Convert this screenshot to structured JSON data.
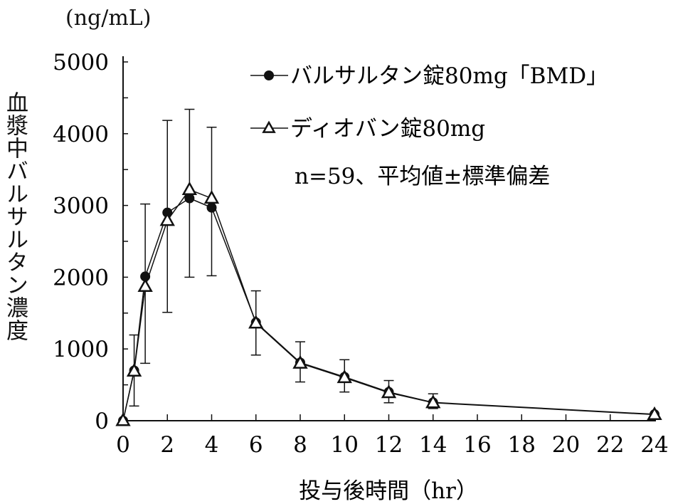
{
  "chart_data": {
    "type": "line",
    "title": "",
    "xlabel": "投与後時間（hr）",
    "ylabel": "血漿中バルサルタン濃度",
    "yunit": "(ng/mL)",
    "xlim": [
      0,
      24
    ],
    "ylim": [
      0,
      5000
    ],
    "xticks": [
      0,
      2,
      4,
      6,
      8,
      10,
      12,
      14,
      16,
      18,
      20,
      22,
      24
    ],
    "yticks": [
      0,
      1000,
      2000,
      3000,
      4000,
      5000
    ],
    "grid": false,
    "legend_position": "top-right",
    "annotation": "n=59、平均値±標準偏差",
    "x": [
      0,
      0.5,
      1,
      2,
      3,
      4,
      6,
      8,
      10,
      12,
      14,
      24
    ],
    "series": [
      {
        "name": "バルサルタン錠80mg「BMD」",
        "marker": "filled-circle",
        "values": [
          0,
          700,
          2010,
          2900,
          3100,
          2970,
          1370,
          810,
          610,
          400,
          255,
          90
        ]
      },
      {
        "name": "ディオバン錠80mg",
        "marker": "open-triangle",
        "values": [
          0,
          690,
          1870,
          2790,
          3220,
          3100,
          1360,
          800,
          600,
          390,
          250,
          85
        ]
      }
    ],
    "error_bars": {
      "x": [
        0.5,
        1,
        2,
        3,
        4,
        6,
        8,
        10,
        12,
        14
      ],
      "low": [
        205,
        800,
        1510,
        2000,
        2020,
        915,
        540,
        400,
        250,
        170
      ],
      "high": [
        1195,
        3020,
        4185,
        4340,
        4090,
        1810,
        1100,
        850,
        560,
        375
      ]
    }
  }
}
